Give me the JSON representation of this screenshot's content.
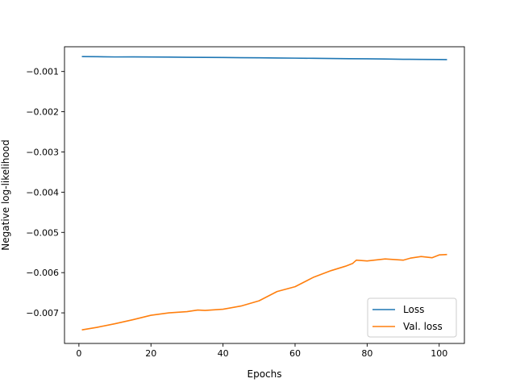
{
  "chart_data": {
    "type": "line",
    "title": "",
    "xlabel": "Epochs",
    "ylabel": "Negative log-likelihood",
    "xlim": [
      -4.0,
      107.0
    ],
    "ylim": [
      -0.00776,
      -0.000385
    ],
    "xticks": [
      0,
      20,
      40,
      60,
      80,
      100
    ],
    "xtick_labels": [
      "0",
      "20",
      "40",
      "60",
      "80",
      "100"
    ],
    "yticks": [
      -0.001,
      -0.002,
      -0.003,
      -0.004,
      -0.005,
      -0.006,
      -0.007
    ],
    "ytick_labels": [
      "−0.001",
      "−0.002",
      "−0.003",
      "−0.004",
      "−0.005",
      "−0.006",
      "−0.007"
    ],
    "grid": false,
    "legend_position": "lower right",
    "series": [
      {
        "name": "Loss",
        "color": "#1f77b4",
        "points": [
          [
            1,
            -0.00063
          ],
          [
            5,
            -0.000632
          ],
          [
            10,
            -0.000638
          ],
          [
            15,
            -0.000636
          ],
          [
            20,
            -0.00064
          ],
          [
            25,
            -0.000642
          ],
          [
            30,
            -0.000646
          ],
          [
            35,
            -0.00065
          ],
          [
            40,
            -0.000652
          ],
          [
            45,
            -0.000656
          ],
          [
            50,
            -0.00066
          ],
          [
            55,
            -0.000664
          ],
          [
            60,
            -0.000668
          ],
          [
            65,
            -0.000672
          ],
          [
            70,
            -0.000676
          ],
          [
            75,
            -0.000682
          ],
          [
            80,
            -0.000684
          ],
          [
            85,
            -0.00069
          ],
          [
            90,
            -0.000696
          ],
          [
            95,
            -0.0007
          ],
          [
            100,
            -0.000702
          ],
          [
            102,
            -0.000704
          ]
        ]
      },
      {
        "name": "Val. loss",
        "color": "#ff7f0e",
        "points": [
          [
            1,
            -0.00742
          ],
          [
            5,
            -0.00736
          ],
          [
            10,
            -0.00727
          ],
          [
            15,
            -0.00717
          ],
          [
            20,
            -0.00706
          ],
          [
            25,
            -0.007
          ],
          [
            30,
            -0.00697
          ],
          [
            33,
            -0.00693
          ],
          [
            35,
            -0.00694
          ],
          [
            40,
            -0.00691
          ],
          [
            45,
            -0.00683
          ],
          [
            50,
            -0.0067
          ],
          [
            55,
            -0.00647
          ],
          [
            60,
            -0.00635
          ],
          [
            65,
            -0.00612
          ],
          [
            70,
            -0.00595
          ],
          [
            74,
            -0.00584
          ],
          [
            76,
            -0.00577
          ],
          [
            77,
            -0.00569
          ],
          [
            80,
            -0.00571
          ],
          [
            85,
            -0.00566
          ],
          [
            90,
            -0.00569
          ],
          [
            92,
            -0.00564
          ],
          [
            95,
            -0.0056
          ],
          [
            98,
            -0.00563
          ],
          [
            100,
            -0.00556
          ],
          [
            102,
            -0.00555
          ]
        ]
      }
    ]
  }
}
